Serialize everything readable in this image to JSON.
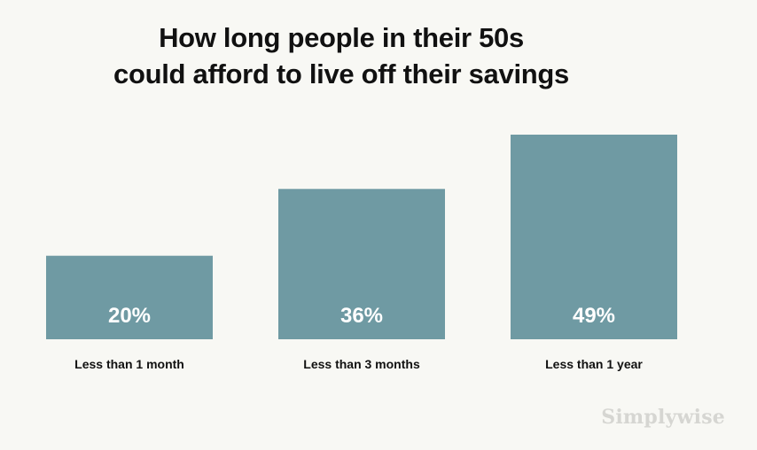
{
  "title_lines": [
    "How long people in their 50s",
    "could afford to live off their savings"
  ],
  "watermark": "Simplywise",
  "colors": {
    "background": "#f8f8f4",
    "bar": "#6f9aa3",
    "bar_label": "#ffffff",
    "category_label": "#111111",
    "watermark": "#d6d6d2"
  },
  "chart_data": {
    "type": "bar",
    "title": "How long people in their 50s could afford to live off their savings",
    "categories": [
      "Less than 1 month",
      "Less than 3 months",
      "Less than 1 year"
    ],
    "values": [
      20,
      36,
      49
    ],
    "data_labels": [
      "20%",
      "36%",
      "49%"
    ],
    "unit": "%",
    "xlabel": "",
    "ylabel": "",
    "ylim": [
      0,
      49
    ],
    "grid": false,
    "legend": "none"
  }
}
